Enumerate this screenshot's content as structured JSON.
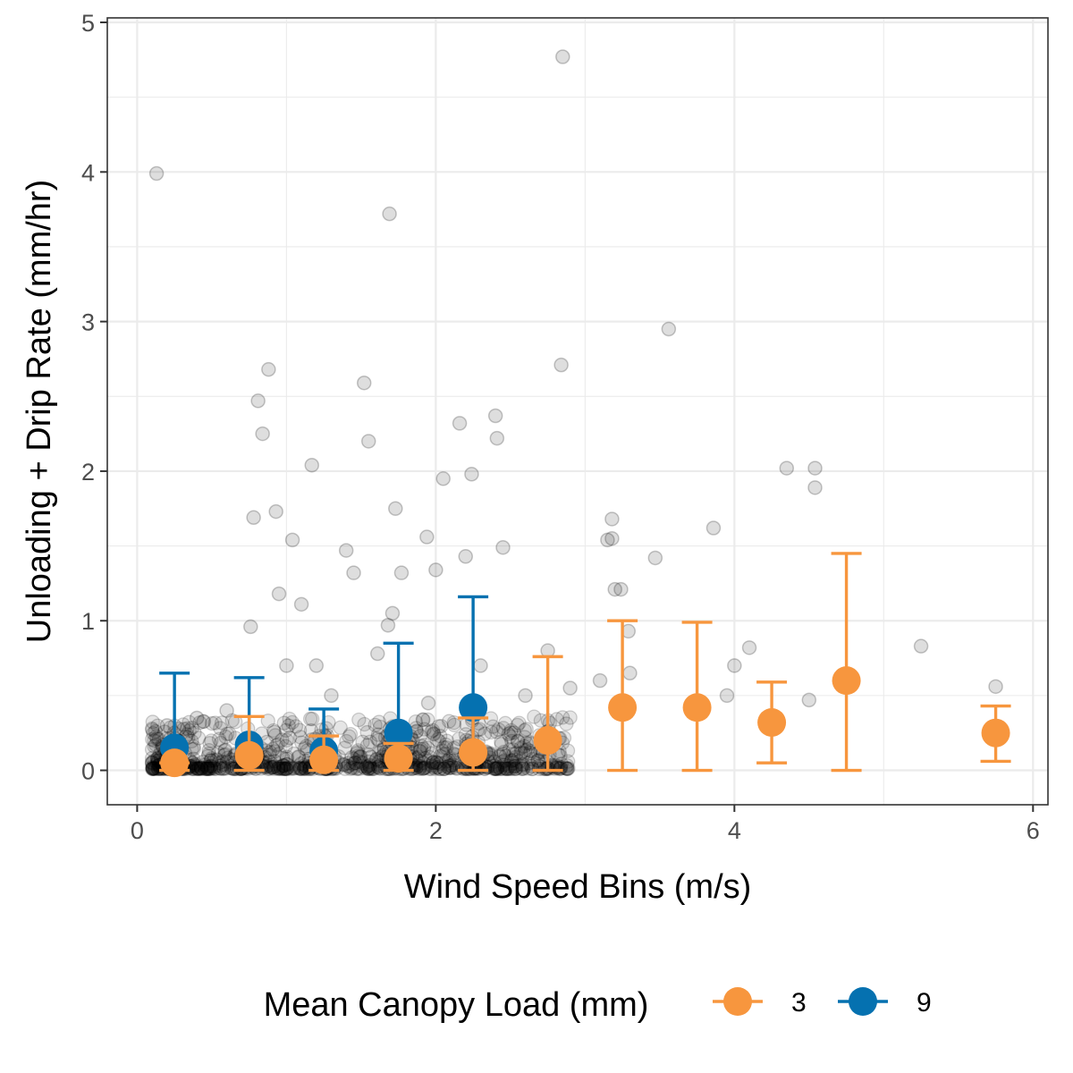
{
  "chart_data": {
    "type": "scatter",
    "title": "",
    "xlabel": "Wind Speed Bins (m/s)",
    "ylabel": "Unloading + Drip Rate (mm/hr)",
    "xlim": [
      -0.2,
      6.1
    ],
    "ylim": [
      -0.23,
      5.03
    ],
    "x_ticks": [
      0,
      2,
      4,
      6
    ],
    "y_ticks": [
      0,
      1,
      2,
      3,
      4,
      5
    ],
    "grid": true,
    "legend": {
      "title": "Mean Canopy Load (mm)",
      "position": "bottom"
    },
    "colors": {
      "series_3": "#F7963E",
      "series_9": "#0571B0",
      "raw_points": "#000000"
    },
    "series": [
      {
        "name": "3",
        "color": "#F7963E",
        "x": [
          0.25,
          0.75,
          1.25,
          1.75,
          2.25,
          2.75,
          3.25,
          3.75,
          4.25,
          4.75,
          5.75
        ],
        "y": [
          0.05,
          0.1,
          0.07,
          0.08,
          0.12,
          0.2,
          0.42,
          0.42,
          0.32,
          0.6,
          0.25
        ],
        "err_low": [
          0.0,
          0.0,
          0.0,
          0.0,
          0.0,
          0.0,
          0.0,
          0.0,
          0.05,
          0.0,
          0.06
        ],
        "err_high": [
          0.05,
          0.36,
          0.23,
          0.18,
          0.35,
          0.76,
          1.0,
          0.99,
          0.59,
          1.45,
          0.43
        ]
      },
      {
        "name": "9",
        "color": "#0571B0",
        "x": [
          0.25,
          0.75,
          1.25,
          1.75,
          2.25
        ],
        "y": [
          0.15,
          0.17,
          0.13,
          0.25,
          0.42
        ],
        "err_low": [
          0.0,
          0.0,
          0.0,
          0.0,
          0.0
        ],
        "err_high": [
          0.65,
          0.62,
          0.41,
          0.85,
          1.16
        ]
      }
    ],
    "raw_points": {
      "x": [
        0.13,
        0.88,
        0.93,
        0.81,
        0.84,
        0.78,
        1.17,
        0.76,
        0.95,
        1.04,
        1.1,
        1.52,
        1.55,
        1.4,
        1.45,
        1.69,
        1.71,
        1.73,
        1.68,
        1.61,
        1.77,
        1.94,
        2.05,
        2.0,
        2.16,
        2.2,
        2.24,
        2.4,
        2.41,
        2.45,
        2.85,
        2.84,
        3.18,
        3.15,
        3.18,
        3.2,
        3.24,
        3.29,
        3.47,
        3.56,
        3.86,
        4.35,
        4.54,
        4.54,
        5.25,
        4.0,
        3.3,
        3.1,
        2.75,
        2.9,
        2.6,
        2.3,
        1.95,
        1.2,
        1.3,
        1.0,
        0.6,
        0.4,
        0.2,
        4.5,
        4.1,
        3.95,
        5.75
      ],
      "y": [
        3.99,
        2.68,
        1.73,
        2.47,
        2.25,
        1.69,
        2.04,
        0.96,
        1.18,
        1.54,
        1.11,
        2.59,
        2.2,
        1.47,
        1.32,
        3.72,
        1.05,
        1.75,
        0.97,
        0.78,
        1.32,
        1.56,
        1.95,
        1.34,
        2.32,
        1.43,
        1.98,
        2.37,
        2.22,
        1.49,
        4.77,
        2.71,
        1.68,
        1.54,
        1.55,
        1.21,
        1.21,
        0.93,
        1.42,
        2.95,
        1.62,
        2.02,
        2.02,
        1.89,
        0.83,
        0.7,
        0.65,
        0.6,
        0.8,
        0.55,
        0.5,
        0.7,
        0.45,
        0.7,
        0.5,
        0.7,
        0.4,
        0.35,
        0.3,
        0.47,
        0.82,
        0.5,
        0.56
      ]
    }
  }
}
